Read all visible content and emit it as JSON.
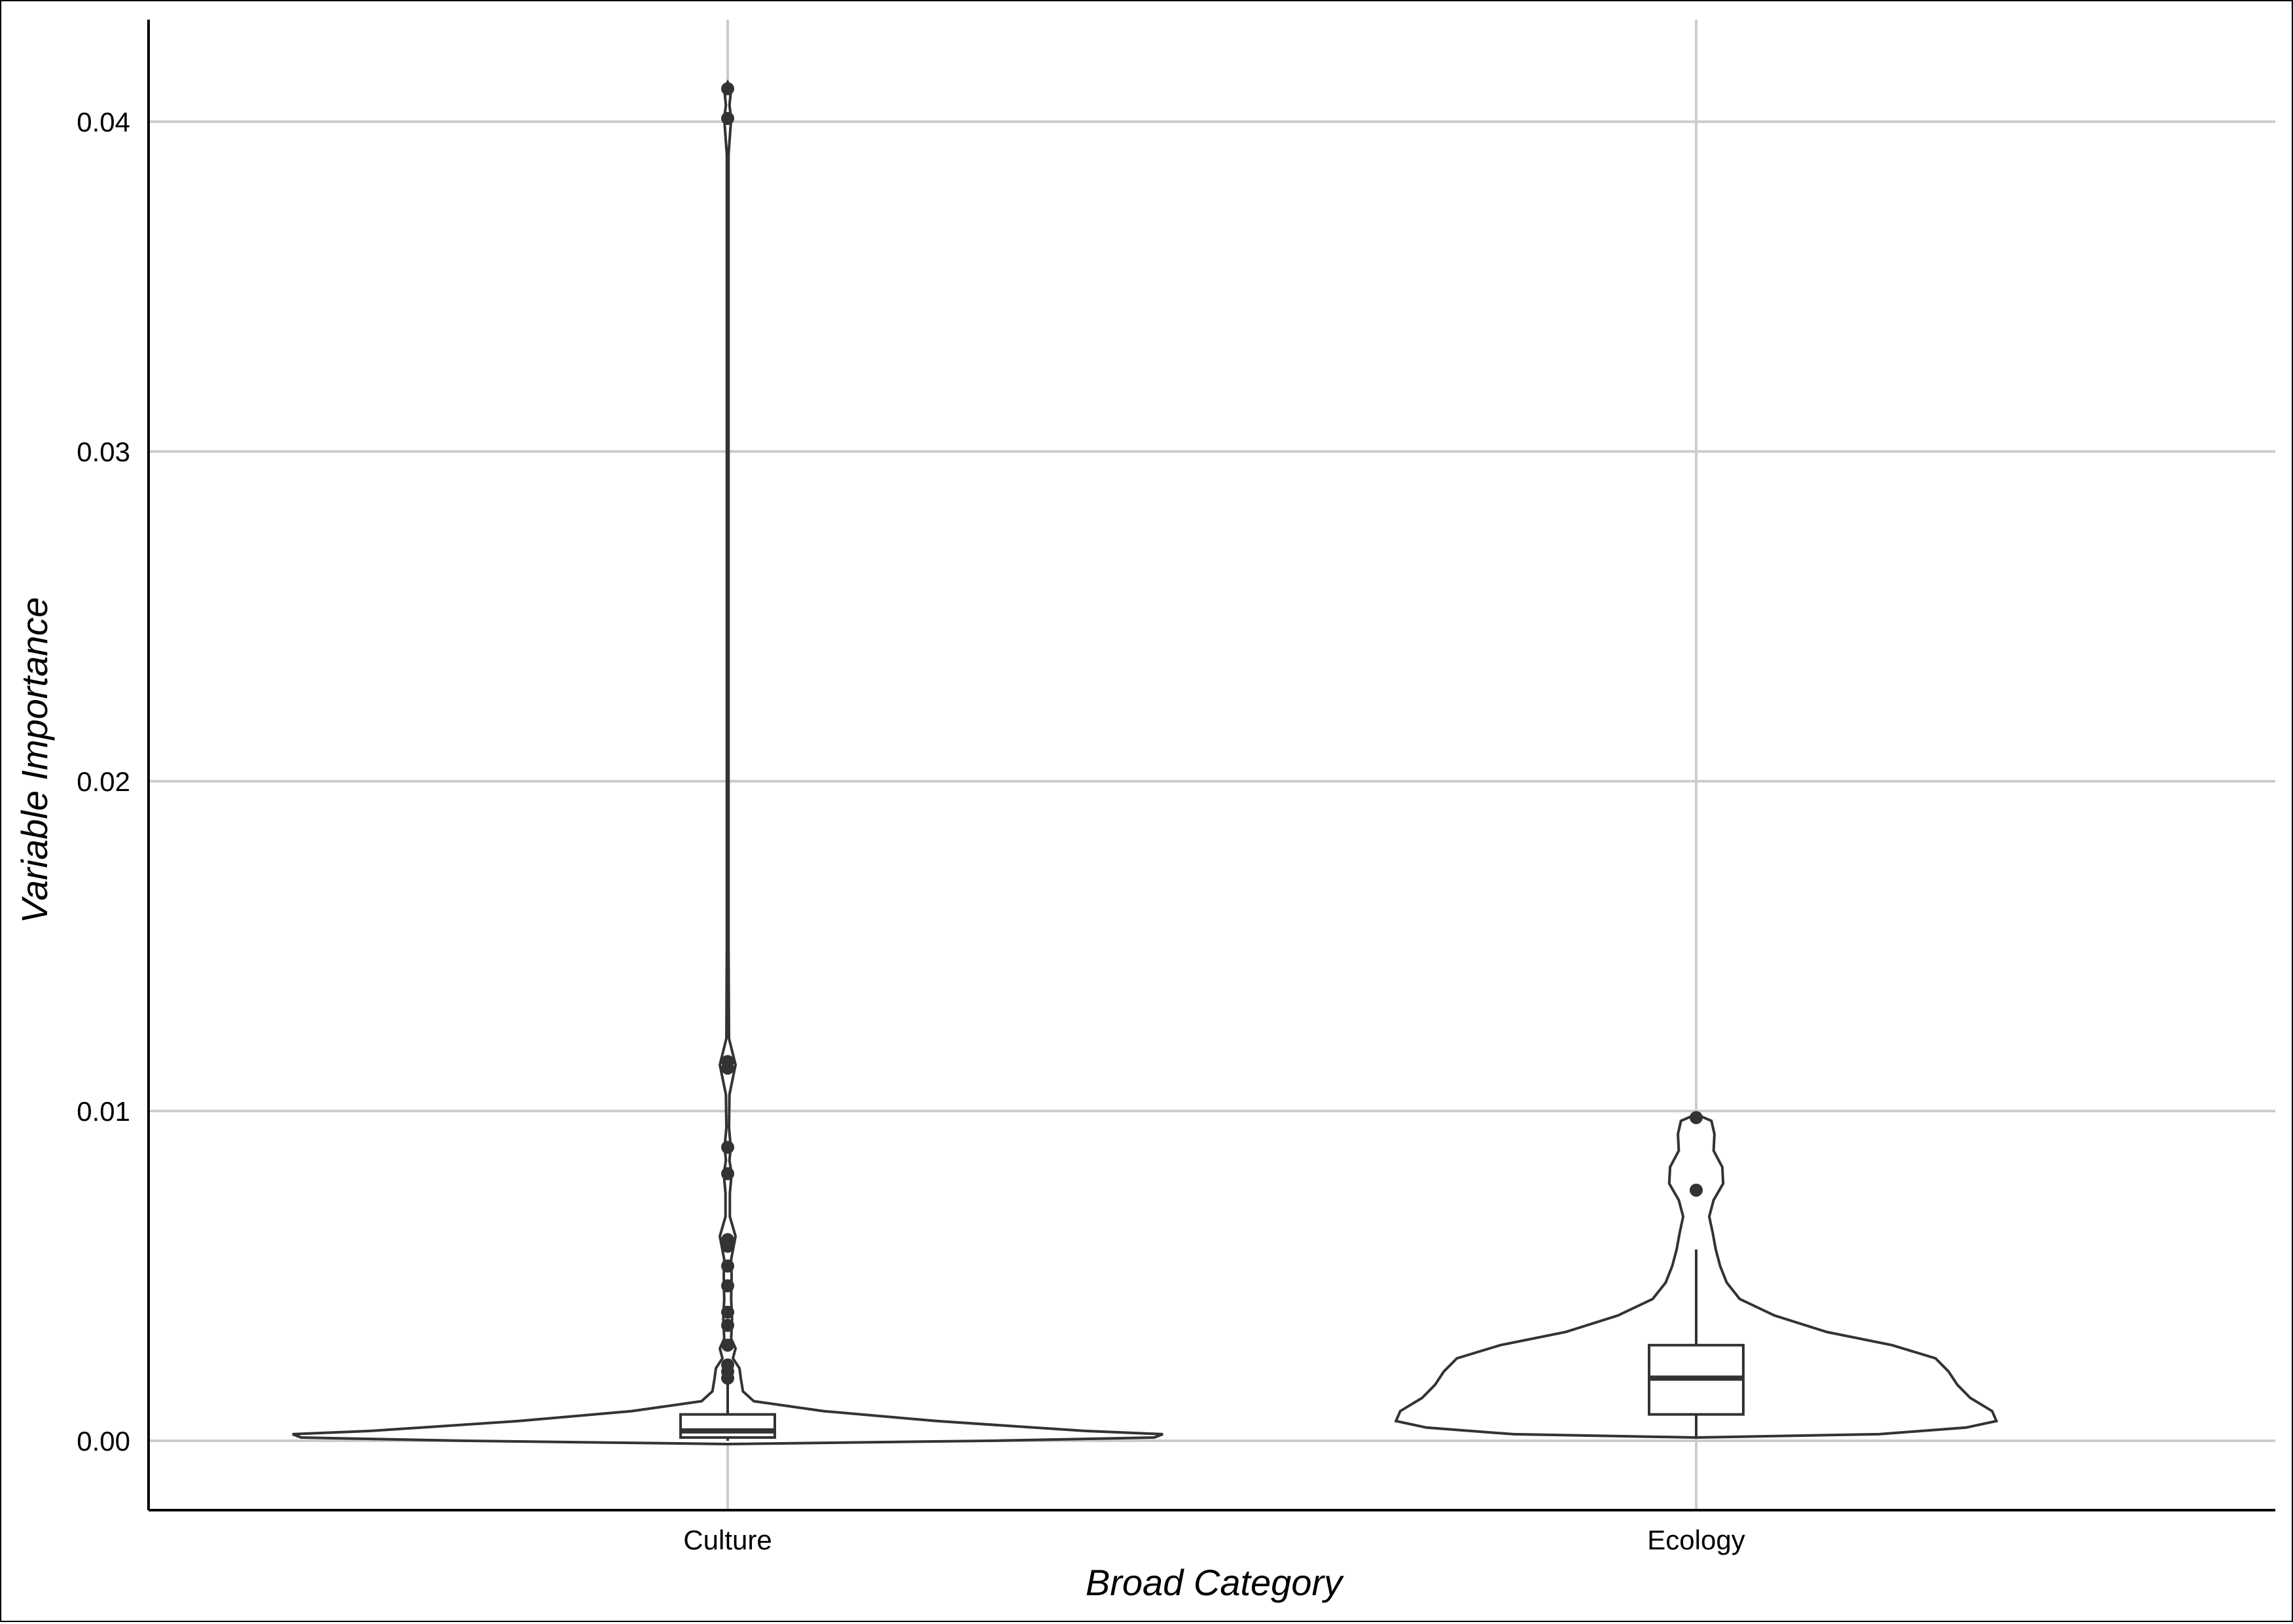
{
  "chart_data": {
    "type": "violin",
    "xlabel": "Broad Category",
    "ylabel": "Variable Importance",
    "ylim": [
      -0.0021,
      0.0431
    ],
    "yticks": [
      0.0,
      0.01,
      0.02,
      0.03,
      0.04
    ],
    "ytick_labels": [
      "0.00",
      "0.01",
      "0.02",
      "0.03",
      "0.04"
    ],
    "grid": true,
    "categories": [
      "Culture",
      "Ecology"
    ],
    "groups": [
      {
        "category": "Culture",
        "min": 0.0,
        "q1": 0.0001,
        "median": 0.0003,
        "q3": 0.0008,
        "whisker_high": 0.0018,
        "outliers": [
          0.041,
          0.0401,
          0.0115,
          0.0113,
          0.0089,
          0.0081,
          0.0061,
          0.0059,
          0.0053,
          0.0047,
          0.0039,
          0.0035,
          0.0029,
          0.0023,
          0.0021,
          0.0019
        ],
        "density": [
          [
            -0.0001,
            0.0
          ],
          [
            0.0,
            0.6
          ],
          [
            0.0001,
            0.98
          ],
          [
            0.0002,
            1.0
          ],
          [
            0.0003,
            0.82
          ],
          [
            0.0006,
            0.48
          ],
          [
            0.0009,
            0.22
          ],
          [
            0.0012,
            0.06
          ],
          [
            0.0015,
            0.035
          ],
          [
            0.0019,
            0.03
          ],
          [
            0.0022,
            0.027
          ],
          [
            0.0025,
            0.012
          ],
          [
            0.0028,
            0.018
          ],
          [
            0.0031,
            0.008
          ],
          [
            0.0037,
            0.01
          ],
          [
            0.0043,
            0.008
          ],
          [
            0.005,
            0.009
          ],
          [
            0.0055,
            0.008
          ],
          [
            0.0062,
            0.018
          ],
          [
            0.0068,
            0.005
          ],
          [
            0.0075,
            0.005
          ],
          [
            0.0081,
            0.009
          ],
          [
            0.0085,
            0.004
          ],
          [
            0.0089,
            0.007
          ],
          [
            0.0095,
            0.003
          ],
          [
            0.0105,
            0.004
          ],
          [
            0.0114,
            0.018
          ],
          [
            0.0122,
            0.003
          ],
          [
            0.015,
            0.002
          ],
          [
            0.02,
            0.002
          ],
          [
            0.03,
            0.002
          ],
          [
            0.039,
            0.002
          ],
          [
            0.0401,
            0.008
          ],
          [
            0.0405,
            0.004
          ],
          [
            0.041,
            0.008
          ],
          [
            0.0412,
            0.0
          ]
        ]
      },
      {
        "category": "Ecology",
        "min": 0.0001,
        "q1": 0.0008,
        "median": 0.0019,
        "q3": 0.0029,
        "whisker_high": 0.0058,
        "outliers": [
          0.0098,
          0.0076
        ],
        "density": [
          [
            0.0001,
            0.0
          ],
          [
            0.0002,
            0.42
          ],
          [
            0.0004,
            0.62
          ],
          [
            0.0006,
            0.69
          ],
          [
            0.0009,
            0.68
          ],
          [
            0.0013,
            0.63
          ],
          [
            0.0017,
            0.6
          ],
          [
            0.0021,
            0.58
          ],
          [
            0.0025,
            0.55
          ],
          [
            0.0029,
            0.45
          ],
          [
            0.0033,
            0.3
          ],
          [
            0.0038,
            0.18
          ],
          [
            0.0043,
            0.1
          ],
          [
            0.0048,
            0.07
          ],
          [
            0.0053,
            0.055
          ],
          [
            0.0058,
            0.045
          ],
          [
            0.0063,
            0.038
          ],
          [
            0.0068,
            0.03
          ],
          [
            0.0073,
            0.04
          ],
          [
            0.0078,
            0.062
          ],
          [
            0.0083,
            0.06
          ],
          [
            0.0088,
            0.04
          ],
          [
            0.0093,
            0.042
          ],
          [
            0.0097,
            0.035
          ],
          [
            0.0099,
            0.0
          ]
        ]
      }
    ]
  }
}
